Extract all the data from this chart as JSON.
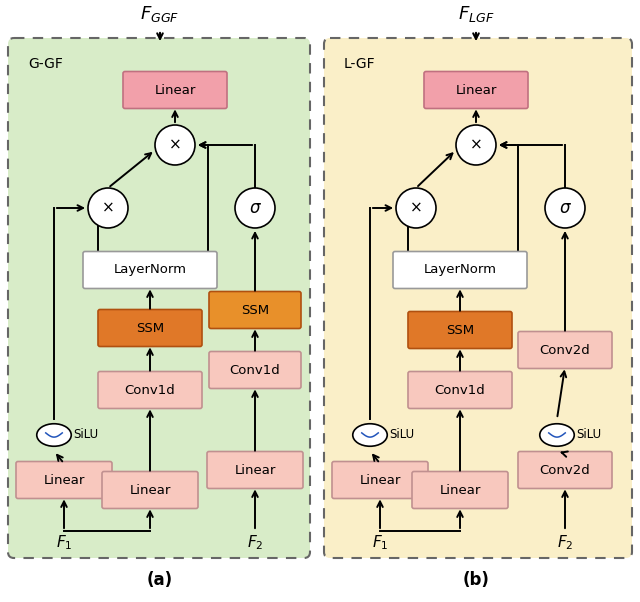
{
  "fig_width": 6.4,
  "fig_height": 6.02,
  "panel_a": {
    "bg_color": "#d8ecc8",
    "border_color": "#666666",
    "label": "G-GF",
    "title": "$F_{GGF}$",
    "caption": "(a)",
    "f1": "$F_1$",
    "f2": "$F_2$",
    "linear_top": {
      "text": "Linear",
      "fc": "#f2a0aa",
      "ec": "#c07080"
    },
    "layernorm": {
      "text": "LayerNorm",
      "fc": "#ffffff",
      "ec": "#999999"
    },
    "ssm_left": {
      "text": "SSM",
      "fc": "#e07828",
      "ec": "#b05010"
    },
    "ssm_right": {
      "text": "SSM",
      "fc": "#e8902a",
      "ec": "#b05010"
    },
    "conv1d_left": {
      "text": "Conv1d",
      "fc": "#f8c8be",
      "ec": "#c09090"
    },
    "conv1d_right": {
      "text": "Conv1d",
      "fc": "#f8c8be",
      "ec": "#c09090"
    },
    "linear_left": {
      "text": "Linear",
      "fc": "#f8c8be",
      "ec": "#c09090"
    },
    "linear_mid": {
      "text": "Linear",
      "fc": "#f8c8be",
      "ec": "#c09090"
    },
    "linear_right": {
      "text": "Linear",
      "fc": "#f8c8be",
      "ec": "#c09090"
    }
  },
  "panel_b": {
    "bg_color": "#faefc8",
    "border_color": "#666666",
    "label": "L-GF",
    "title": "$F_{LGF}$",
    "caption": "(b)",
    "f1": "$F_1$",
    "f2": "$F_2$",
    "linear_top": {
      "text": "Linear",
      "fc": "#f2a0aa",
      "ec": "#c07080"
    },
    "layernorm": {
      "text": "LayerNorm",
      "fc": "#ffffff",
      "ec": "#999999"
    },
    "ssm": {
      "text": "SSM",
      "fc": "#e07828",
      "ec": "#b05010"
    },
    "conv1d": {
      "text": "Conv1d",
      "fc": "#f8c8be",
      "ec": "#c09090"
    },
    "conv2d_top": {
      "text": "Conv2d",
      "fc": "#f8c8be",
      "ec": "#c09090"
    },
    "conv2d_bot": {
      "text": "Conv2d",
      "fc": "#f8c8be",
      "ec": "#c09090"
    },
    "linear_left": {
      "text": "Linear",
      "fc": "#f8c8be",
      "ec": "#c09090"
    },
    "linear_mid": {
      "text": "Linear",
      "fc": "#f8c8be",
      "ec": "#c09090"
    }
  }
}
